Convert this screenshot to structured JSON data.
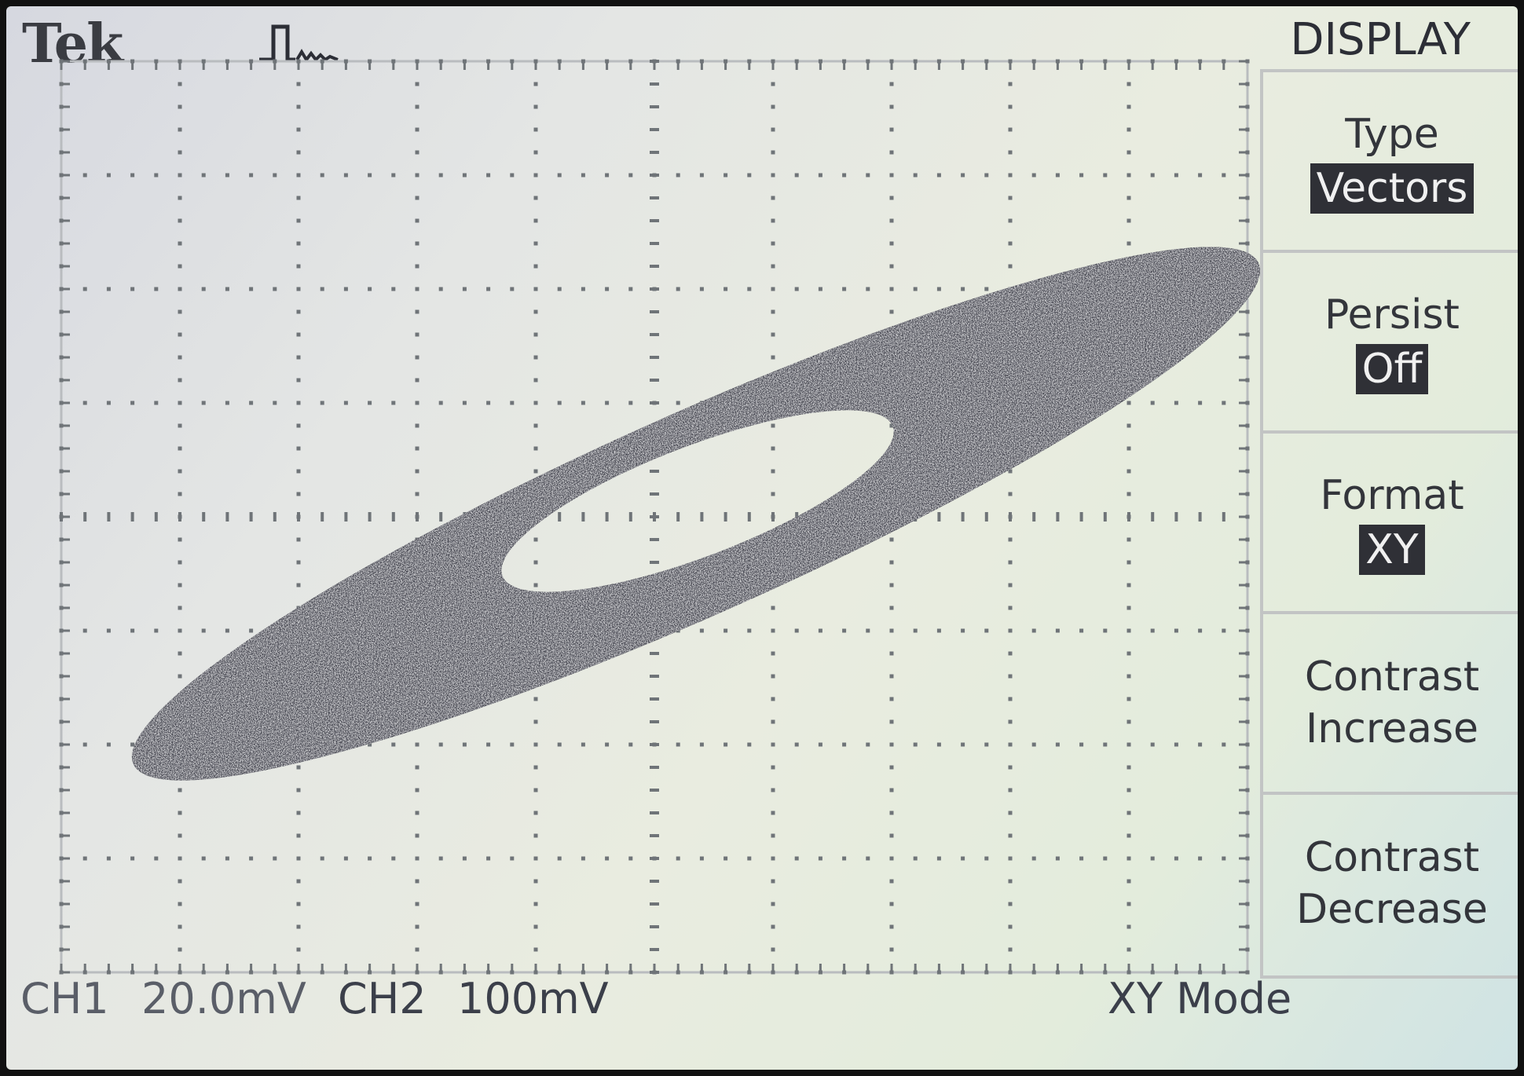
{
  "header": {
    "brand": "Tek",
    "trigger_icon": "trigger-ready-icon",
    "menu_title": "DISPLAY"
  },
  "menu": {
    "buttons": [
      {
        "label": "Type",
        "value": "Vectors"
      },
      {
        "label": "Persist",
        "value": "Off"
      },
      {
        "label": "Format",
        "value": "XY"
      },
      {
        "label": "Contrast",
        "value_line2": "Increase"
      },
      {
        "label": "Contrast",
        "value_line2": "Decrease"
      }
    ]
  },
  "status": {
    "ch1_label": "CH1",
    "ch1_scale": "20.0mV",
    "ch2_label": "CH2",
    "ch2_scale": "100mV",
    "mode": "XY Mode"
  },
  "trace": {
    "shape": "tilted ellipse (Lissajous loop) with noise band",
    "color": "#2e2f3a"
  }
}
